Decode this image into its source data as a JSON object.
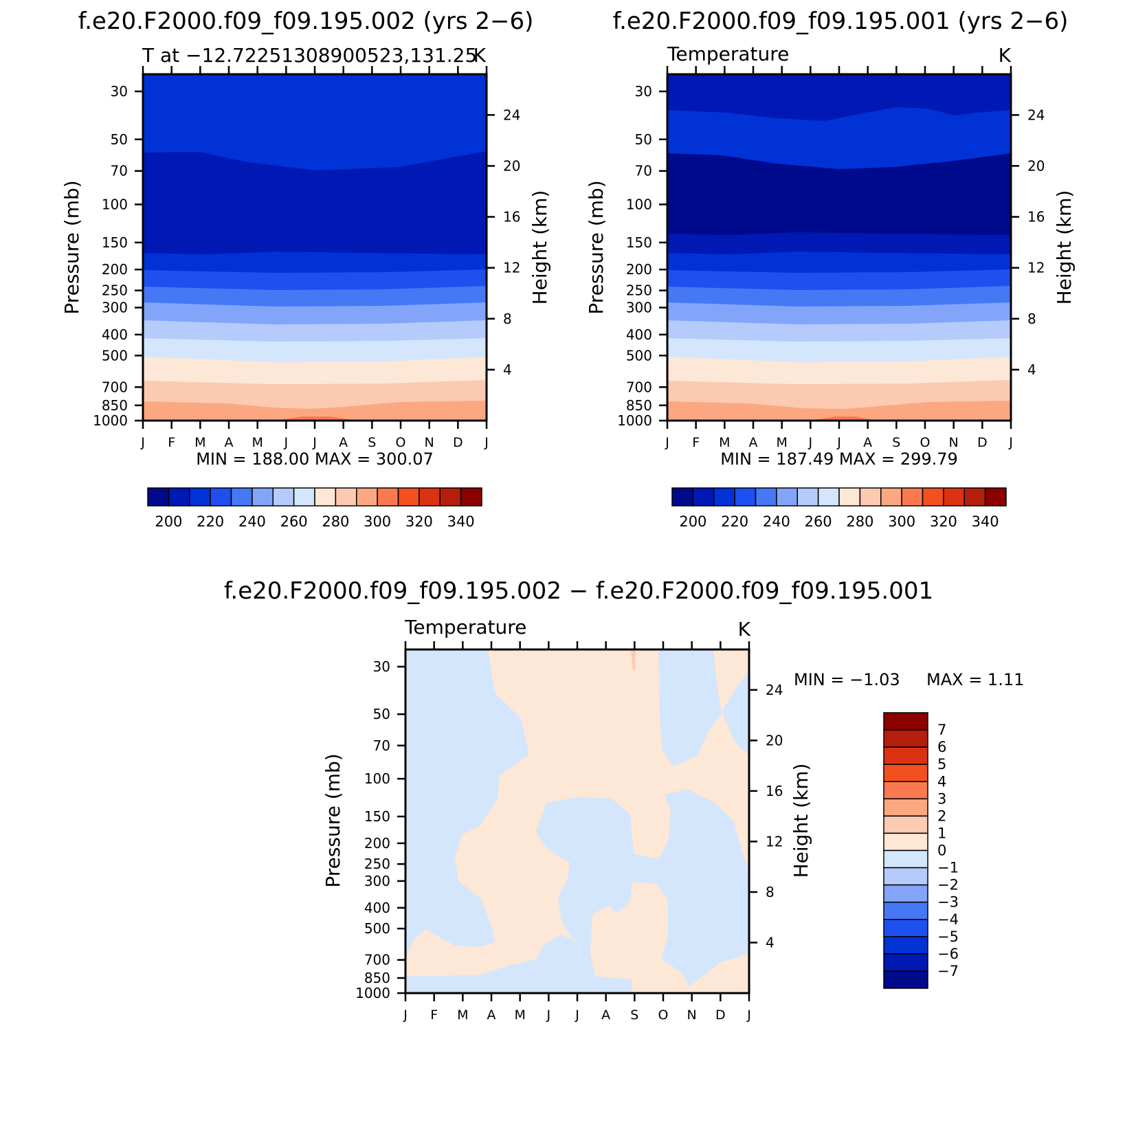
{
  "chart_data": [
    {
      "type": "heatmap",
      "subtype": "filled-contour",
      "title": "f.e20.F2000.f09_f09.195.002 (yrs 2−6)",
      "subtitle_left": "T at −12.72251308900523,131.25",
      "subtitle_right": "K",
      "ylabel": "Pressure (mb)",
      "ylabel_right": "Height (km)",
      "x_ticks": [
        "J",
        "F",
        "M",
        "A",
        "M",
        "J",
        "J",
        "A",
        "S",
        "O",
        "N",
        "D",
        "J"
      ],
      "y_ticks": [
        "30",
        "50",
        "70",
        "100",
        "150",
        "200",
        "250",
        "300",
        "400",
        "500",
        "700",
        "850",
        "1000"
      ],
      "y_right_ticks": [
        "24",
        "20",
        "16",
        "12",
        "8",
        "4"
      ],
      "stats": "MIN = 188.00 MAX = 300.07",
      "colorbar": {
        "labels": [
          "200",
          "220",
          "240",
          "260",
          "280",
          "300",
          "320",
          "340"
        ],
        "colors": [
          "#000a8c",
          "#0018b4",
          "#0032d6",
          "#1e50f0",
          "#4678f5",
          "#82a5fa",
          "#b4cbfc",
          "#d4e6fb",
          "#fde7d6",
          "#fccab0",
          "#fba882",
          "#f97a50",
          "#f44f1e",
          "#dc3212",
          "#b41e0a",
          "#8c0000"
        ]
      }
    },
    {
      "type": "heatmap",
      "subtype": "filled-contour",
      "title": "f.e20.F2000.f09_f09.195.001 (yrs 2−6)",
      "subtitle_left": "Temperature",
      "subtitle_right": "K",
      "ylabel": "Pressure (mb)",
      "ylabel_right": "Height (km)",
      "x_ticks": [
        "J",
        "F",
        "M",
        "A",
        "M",
        "J",
        "J",
        "A",
        "S",
        "O",
        "N",
        "D",
        "J"
      ],
      "y_ticks": [
        "30",
        "50",
        "70",
        "100",
        "150",
        "200",
        "250",
        "300",
        "400",
        "500",
        "700",
        "850",
        "1000"
      ],
      "y_right_ticks": [
        "24",
        "20",
        "16",
        "12",
        "8",
        "4"
      ],
      "stats": "MIN = 187.49 MAX = 299.79",
      "colorbar": {
        "labels": [
          "200",
          "220",
          "240",
          "260",
          "280",
          "300",
          "320",
          "340"
        ],
        "colors": [
          "#000a8c",
          "#0018b4",
          "#0032d6",
          "#1e50f0",
          "#4678f5",
          "#82a5fa",
          "#b4cbfc",
          "#d4e6fb",
          "#fde7d6",
          "#fccab0",
          "#fba882",
          "#f97a50",
          "#f44f1e",
          "#dc3212",
          "#b41e0a",
          "#8c0000"
        ]
      }
    },
    {
      "type": "heatmap",
      "subtype": "filled-contour-difference",
      "title": "f.e20.F2000.f09_f09.195.002 − f.e20.F2000.f09_f09.195.001",
      "subtitle_left": "Temperature",
      "subtitle_right": "K",
      "ylabel": "Pressure (mb)",
      "ylabel_right": "Height (km)",
      "x_ticks": [
        "J",
        "F",
        "M",
        "A",
        "M",
        "J",
        "J",
        "A",
        "S",
        "O",
        "N",
        "D",
        "J"
      ],
      "y_ticks": [
        "30",
        "50",
        "70",
        "100",
        "150",
        "200",
        "250",
        "300",
        "400",
        "500",
        "700",
        "850",
        "1000"
      ],
      "y_right_ticks": [
        "24",
        "20",
        "16",
        "12",
        "8",
        "4"
      ],
      "stats_min": "MIN =  −1.03",
      "stats_max": "MAX =    1.11",
      "colorbar": {
        "labels": [
          "7",
          "6",
          "5",
          "4",
          "3",
          "2",
          "1",
          "0",
          "−1",
          "−2",
          "−3",
          "−4",
          "−5",
          "−6",
          "−7"
        ],
        "colors": [
          "#8c0000",
          "#b41e0a",
          "#dc3212",
          "#f44f1e",
          "#f97a50",
          "#fba882",
          "#fccab0",
          "#fde7d6",
          "#d4e6fb",
          "#b4cbfc",
          "#82a5fa",
          "#4678f5",
          "#1e50f0",
          "#0032d6",
          "#0018b4",
          "#000a8c"
        ]
      }
    }
  ]
}
